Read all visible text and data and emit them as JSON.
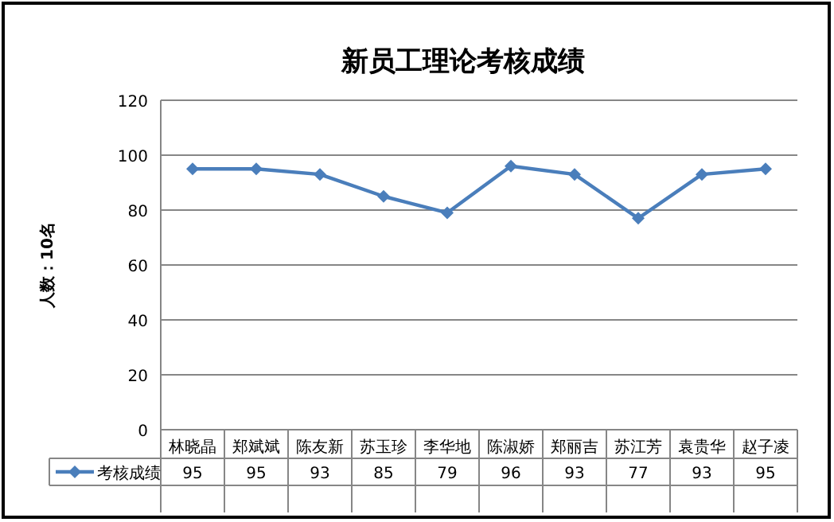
{
  "chart_data": {
    "type": "line",
    "title": "新员工理论考核成绩",
    "ylabel": "人数：10名",
    "categories": [
      "林晓晶",
      "郑斌斌",
      "陈友新",
      "苏玉珍",
      "李华地",
      "陈淑娇",
      "郑丽吉",
      "苏江芳",
      "袁贵华",
      "赵子凌"
    ],
    "series": [
      {
        "name": "考核成绩",
        "color": "#4a7ebb",
        "values": [
          95,
          95,
          93,
          85,
          79,
          96,
          93,
          77,
          93,
          95
        ]
      }
    ],
    "ylim": [
      0,
      120
    ],
    "yticks": [
      0,
      20,
      40,
      60,
      80,
      100,
      120
    ],
    "grid": "y",
    "marker": "diamond",
    "legend": "bottom",
    "data_labels": true
  }
}
